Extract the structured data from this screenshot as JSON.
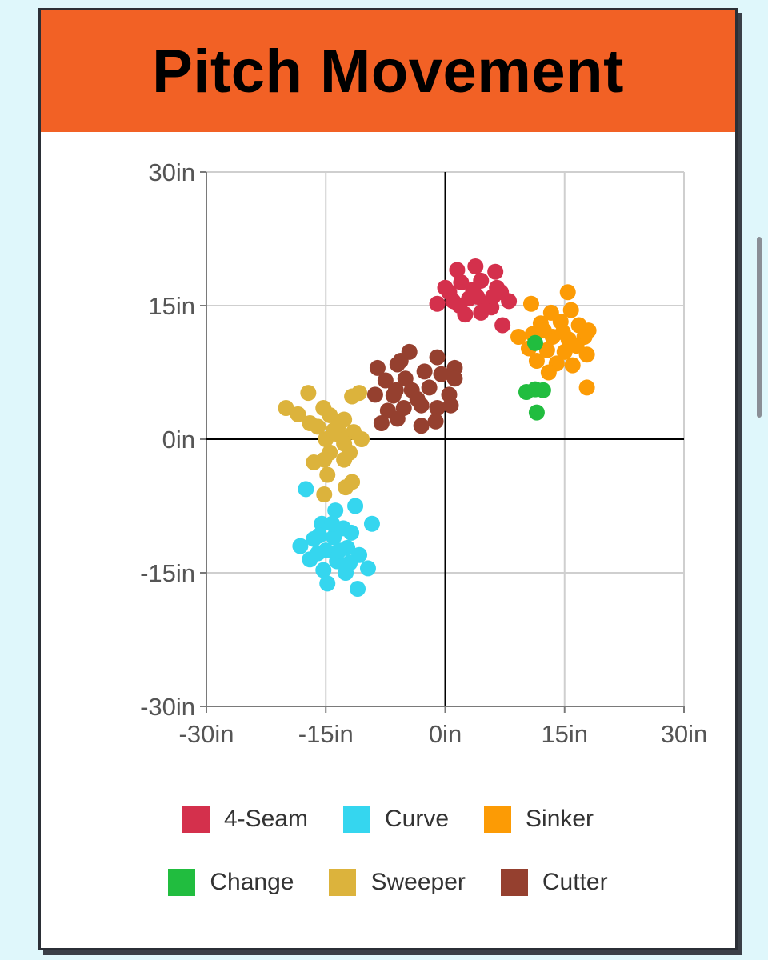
{
  "chart_data": {
    "type": "scatter",
    "title": "Pitch Movement",
    "xlim": [
      -30,
      30
    ],
    "ylim": [
      -30,
      30
    ],
    "x_ticks": [
      -30,
      -15,
      0,
      15,
      30
    ],
    "y_ticks": [
      -30,
      -15,
      0,
      15,
      30
    ],
    "tick_format_suffix": "in",
    "x_tick_labels": [
      "-30in",
      "-15in",
      "0in",
      "15in",
      "30in"
    ],
    "y_tick_labels": [
      "30in",
      "15in",
      "0in",
      "-15in",
      "-30in"
    ],
    "grid": true,
    "legend_position": "bottom",
    "series": [
      {
        "name": "4-Seam",
        "color": "#d4304c",
        "points": [
          [
            1.5,
            19
          ],
          [
            3.8,
            19.4
          ],
          [
            6.3,
            18.8
          ],
          [
            0,
            17
          ],
          [
            2,
            17.6
          ],
          [
            4.5,
            17.8
          ],
          [
            6.5,
            17
          ],
          [
            8,
            15.5
          ],
          [
            -1,
            15.2
          ],
          [
            1,
            15.5
          ],
          [
            3,
            15.8
          ],
          [
            5,
            15.2
          ],
          [
            7,
            16.5
          ],
          [
            2.5,
            14
          ],
          [
            4.5,
            14.2
          ],
          [
            0.5,
            16.5
          ],
          [
            3.5,
            16.8
          ],
          [
            5.8,
            14.8
          ],
          [
            7.2,
            12.8
          ],
          [
            1.8,
            15
          ],
          [
            4,
            16
          ],
          [
            6,
            16
          ]
        ]
      },
      {
        "name": "Curve",
        "color": "#35d6ef",
        "points": [
          [
            -17.5,
            -5.6
          ],
          [
            -13.8,
            -8
          ],
          [
            -11.3,
            -7.5
          ],
          [
            -15.5,
            -9.5
          ],
          [
            -12.8,
            -10
          ],
          [
            -9.2,
            -9.5
          ],
          [
            -16.5,
            -11.2
          ],
          [
            -14,
            -11
          ],
          [
            -11.8,
            -10.5
          ],
          [
            -18.2,
            -12
          ],
          [
            -15,
            -12.5
          ],
          [
            -12.3,
            -12.2
          ],
          [
            -17,
            -13.5
          ],
          [
            -13.6,
            -13.7
          ],
          [
            -10.8,
            -13
          ],
          [
            -15.3,
            -14.7
          ],
          [
            -12.5,
            -15
          ],
          [
            -9.7,
            -14.5
          ],
          [
            -14.8,
            -16.2
          ],
          [
            -11,
            -16.8
          ],
          [
            -16,
            -12.8
          ],
          [
            -13.3,
            -12.5
          ],
          [
            -14.2,
            -9.5
          ],
          [
            -12,
            -13.9
          ],
          [
            -15.8,
            -10.8
          ]
        ]
      },
      {
        "name": "Sinker",
        "color": "#fc9b05",
        "points": [
          [
            15.4,
            16.5
          ],
          [
            10.8,
            15.2
          ],
          [
            13.3,
            14.2
          ],
          [
            15.8,
            14.5
          ],
          [
            12,
            13
          ],
          [
            14.5,
            13.2
          ],
          [
            16.8,
            12.8
          ],
          [
            18,
            12.2
          ],
          [
            9.2,
            11.5
          ],
          [
            11,
            11.8
          ],
          [
            13.5,
            11.5
          ],
          [
            15.5,
            11.2
          ],
          [
            17.5,
            11.5
          ],
          [
            10.5,
            10.2
          ],
          [
            12.8,
            10
          ],
          [
            15,
            9.8
          ],
          [
            17.8,
            9.5
          ],
          [
            11.5,
            8.8
          ],
          [
            14,
            8.5
          ],
          [
            16,
            8.3
          ],
          [
            13,
            7.5
          ],
          [
            17.8,
            5.8
          ],
          [
            14.8,
            12
          ],
          [
            12.4,
            12.2
          ],
          [
            16.5,
            10.5
          ]
        ]
      },
      {
        "name": "Change",
        "color": "#21bd3f",
        "points": [
          [
            10.2,
            5.3
          ],
          [
            11.3,
            5.6
          ],
          [
            12.3,
            5.5
          ],
          [
            11.5,
            3
          ],
          [
            11.3,
            10.8
          ]
        ]
      },
      {
        "name": "Sweeper",
        "color": "#dcb33c",
        "points": [
          [
            -17.2,
            5.2
          ],
          [
            -20,
            3.5
          ],
          [
            -15.3,
            3.5
          ],
          [
            -18.5,
            2.8
          ],
          [
            -10.8,
            5.2
          ],
          [
            -11.7,
            4.8
          ],
          [
            -17,
            1.8
          ],
          [
            -14.5,
            2.7
          ],
          [
            -12.7,
            2.2
          ],
          [
            -16,
            1.4
          ],
          [
            -13.5,
            1.3
          ],
          [
            -11.5,
            0.8
          ],
          [
            -15,
            0
          ],
          [
            -12.7,
            -0.5
          ],
          [
            -10.5,
            0
          ],
          [
            -14.5,
            -1.5
          ],
          [
            -12,
            -1.5
          ],
          [
            -16.5,
            -2.6
          ],
          [
            -15.2,
            -2.3
          ],
          [
            -12.7,
            -2.3
          ],
          [
            -14.8,
            -4
          ],
          [
            -12.5,
            -5.4
          ],
          [
            -11.7,
            -4.8
          ],
          [
            -15.2,
            -6.2
          ],
          [
            -13.2,
            0.4
          ],
          [
            -14,
            1
          ]
        ]
      },
      {
        "name": "Cutter",
        "color": "#95402f",
        "points": [
          [
            -8.5,
            8
          ],
          [
            -6,
            8.4
          ],
          [
            -4.5,
            9.8
          ],
          [
            -1,
            9.2
          ],
          [
            1.2,
            8
          ],
          [
            -7.5,
            6.6
          ],
          [
            -5,
            6.8
          ],
          [
            -2.6,
            7.6
          ],
          [
            -0.5,
            7.3
          ],
          [
            1.2,
            6.8
          ],
          [
            -8.8,
            5
          ],
          [
            -6.5,
            4.9
          ],
          [
            -4.2,
            5.5
          ],
          [
            -2,
            5.8
          ],
          [
            0.5,
            5
          ],
          [
            -7.2,
            3.2
          ],
          [
            -5.2,
            3.5
          ],
          [
            -3,
            3.8
          ],
          [
            -1,
            3.5
          ],
          [
            -8,
            1.8
          ],
          [
            -6,
            2.3
          ],
          [
            -3,
            1.5
          ],
          [
            -1.2,
            2
          ],
          [
            0.7,
            3.8
          ],
          [
            -5.6,
            8.8
          ],
          [
            -3.5,
            4.5
          ],
          [
            -6.2,
            5.5
          ]
        ]
      }
    ]
  }
}
